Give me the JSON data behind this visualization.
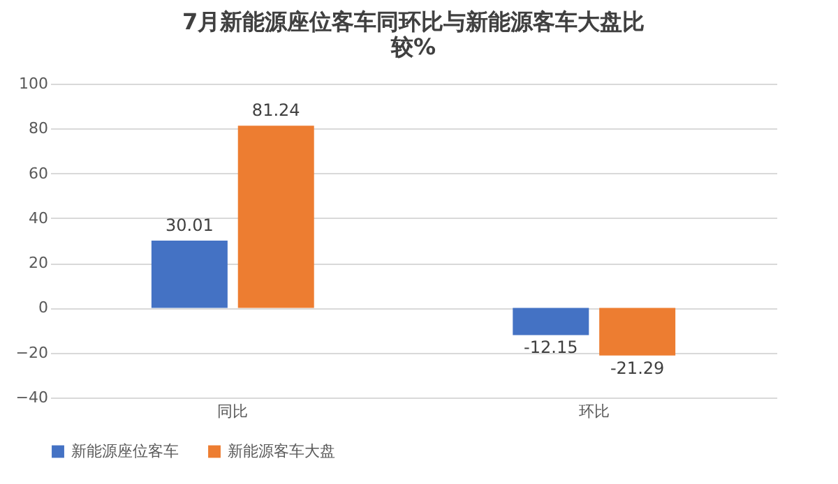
{
  "chart_data": {
    "type": "bar",
    "title": "7月新能源座位客车同环比与新能源客车大盘比较%",
    "categories": [
      "同比",
      "环比"
    ],
    "series": [
      {
        "name": "新能源座位客车",
        "color": "#4472c4",
        "values": [
          30.01,
          -12.15
        ]
      },
      {
        "name": "新能源客车大盘",
        "color": "#ed7d31",
        "values": [
          81.24,
          -21.29
        ]
      }
    ],
    "ylim": [
      -40,
      100
    ],
    "yticks": [
      -40,
      -20,
      0,
      20,
      40,
      60,
      80,
      100
    ],
    "grid": "y",
    "legend": "bottom",
    "data_labels": true
  }
}
